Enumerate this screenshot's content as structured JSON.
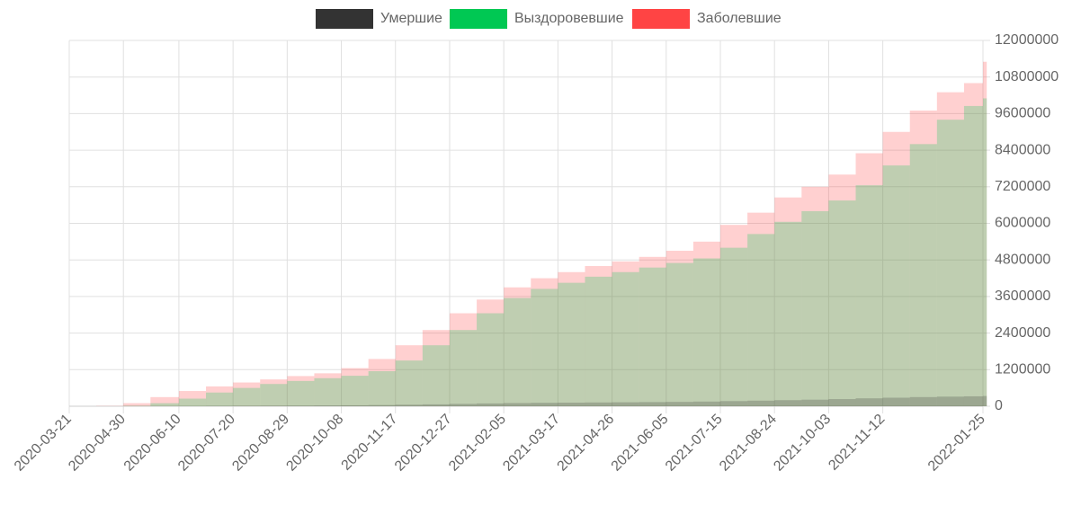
{
  "chart_data": {
    "type": "bar",
    "x": [
      "2020-03-21",
      "2020-04-10",
      "2020-04-30",
      "2020-05-20",
      "2020-06-10",
      "2020-06-30",
      "2020-07-20",
      "2020-08-09",
      "2020-08-29",
      "2020-09-18",
      "2020-10-08",
      "2020-10-28",
      "2020-11-17",
      "2020-12-07",
      "2020-12-27",
      "2021-01-16",
      "2021-02-05",
      "2021-02-25",
      "2021-03-17",
      "2021-04-06",
      "2021-04-26",
      "2021-05-16",
      "2021-06-05",
      "2021-06-25",
      "2021-07-15",
      "2021-08-04",
      "2021-08-24",
      "2021-09-13",
      "2021-10-03",
      "2021-10-23",
      "2021-11-12",
      "2021-12-02",
      "2021-12-22",
      "2022-01-11",
      "2022-01-25"
    ],
    "series": [
      {
        "name": "Умершие",
        "color": "#333333",
        "values": [
          0,
          0,
          1000,
          3000,
          6000,
          10000,
          14000,
          17000,
          20000,
          25000,
          31000,
          39000,
          50000,
          62000,
          77000,
          92000,
          104000,
          112000,
          118000,
          124000,
          130000,
          136000,
          142000,
          153000,
          168000,
          183000,
          200000,
          215000,
          235000,
          260000,
          280000,
          300000,
          315000,
          325000,
          335000
        ]
      },
      {
        "name": "Выздоровевшие",
        "color": "#00c853",
        "values": [
          0,
          0,
          15000,
          100000,
          250000,
          450000,
          600000,
          730000,
          830000,
          920000,
          1000000,
          1150000,
          1500000,
          2000000,
          2500000,
          3050000,
          3550000,
          3850000,
          4050000,
          4250000,
          4400000,
          4550000,
          4700000,
          4850000,
          5200000,
          5650000,
          6050000,
          6400000,
          6750000,
          7250000,
          7900000,
          8600000,
          9400000,
          9850000,
          10100000
        ]
      },
      {
        "name": "Заболевшие",
        "color": "#ff4444",
        "values": [
          0,
          10000,
          100000,
          300000,
          500000,
          650000,
          780000,
          880000,
          990000,
          1080000,
          1250000,
          1550000,
          2000000,
          2500000,
          3050000,
          3500000,
          3900000,
          4200000,
          4400000,
          4600000,
          4750000,
          4900000,
          5100000,
          5400000,
          5950000,
          6350000,
          6850000,
          7200000,
          7600000,
          8300000,
          9000000,
          9700000,
          10300000,
          10600000,
          11300000
        ]
      }
    ],
    "xticks": [
      "2020-03-21",
      "2020-04-30",
      "2020-06-10",
      "2020-07-20",
      "2020-08-29",
      "2020-10-08",
      "2020-11-17",
      "2020-12-27",
      "2021-02-05",
      "2021-03-17",
      "2021-04-26",
      "2021-06-05",
      "2021-07-15",
      "2021-08-24",
      "2021-10-03",
      "2021-11-12",
      "2022-01-25"
    ],
    "ylim": [
      0,
      12000000
    ],
    "yticks": [
      0,
      1200000,
      2400000,
      3600000,
      4800000,
      6000000,
      7200000,
      8400000,
      9600000,
      10800000,
      12000000
    ],
    "grid": true,
    "legend": "top"
  }
}
